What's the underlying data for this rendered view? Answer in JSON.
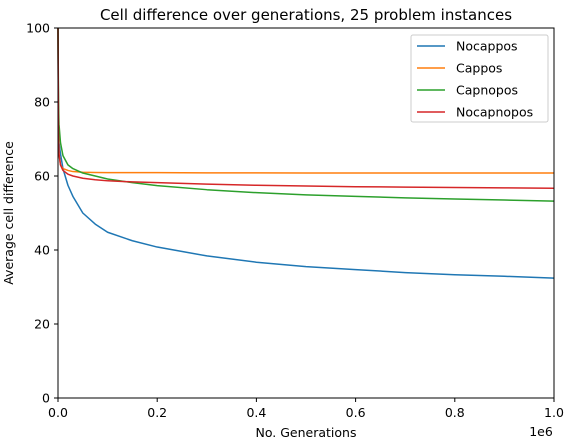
{
  "chart_data": {
    "type": "line",
    "title": "Cell difference over generations, 25 problem instances",
    "xlabel": "No. Generations",
    "ylabel": "Average cell difference",
    "x_offset_label": "1e6",
    "xlim": [
      0,
      1000000
    ],
    "ylim": [
      0,
      100
    ],
    "xticks": [
      0,
      200000,
      400000,
      600000,
      800000,
      1000000
    ],
    "xtick_labels": [
      "0.0",
      "0.2",
      "0.4",
      "0.6",
      "0.8",
      "1.0"
    ],
    "yticks": [
      0,
      20,
      40,
      60,
      80,
      100
    ],
    "ytick_labels": [
      "0",
      "20",
      "40",
      "60",
      "80",
      "100"
    ],
    "grid": false,
    "legend_position": "top-right",
    "x": [
      0,
      1000,
      2000,
      5000,
      10000,
      20000,
      30000,
      50000,
      75000,
      100000,
      150000,
      200000,
      300000,
      400000,
      500000,
      600000,
      700000,
      800000,
      900000,
      1000000
    ],
    "series": [
      {
        "name": "Nocappos",
        "color": "#1f77b4",
        "values": [
          100,
          73,
          69,
          66,
          62,
          57.5,
          54.5,
          50,
          47,
          44.8,
          42.5,
          40.8,
          38.4,
          36.7,
          35.5,
          34.7,
          33.9,
          33.3,
          32.9,
          32.4
        ]
      },
      {
        "name": "Cappos",
        "color": "#ff7f0e",
        "values": [
          100,
          72,
          66,
          63,
          62,
          61.5,
          61.2,
          61,
          60.95,
          60.9,
          60.9,
          60.9,
          60.85,
          60.85,
          60.8,
          60.8,
          60.8,
          60.8,
          60.8,
          60.8
        ]
      },
      {
        "name": "Capnopos",
        "color": "#2ca02c",
        "values": [
          100,
          80,
          74,
          69,
          65.5,
          63,
          62,
          60.8,
          60,
          59.2,
          58.2,
          57.4,
          56.3,
          55.5,
          54.9,
          54.5,
          54.1,
          53.8,
          53.5,
          53.2
        ]
      },
      {
        "name": "Nocapnopos",
        "color": "#d62728",
        "values": [
          100,
          70,
          66,
          63,
          61.5,
          60.5,
          60,
          59.4,
          59,
          58.7,
          58.4,
          58.2,
          57.8,
          57.5,
          57.3,
          57.1,
          57,
          56.9,
          56.8,
          56.7
        ]
      }
    ]
  }
}
